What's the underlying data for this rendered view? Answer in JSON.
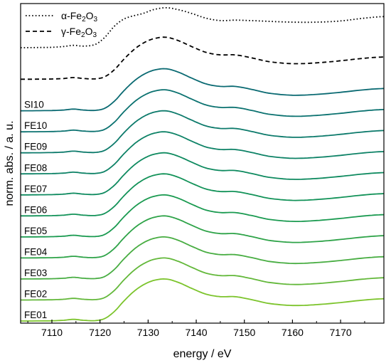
{
  "chart_data": {
    "type": "line",
    "xlabel": "energy / eV",
    "ylabel": "norm. abs. / a. u.",
    "xlim": [
      7103.5,
      7179
    ],
    "x_ticks": [
      7110,
      7120,
      7130,
      7140,
      7150,
      7160,
      7170
    ],
    "y_ticks_visible": false,
    "grid": false,
    "legend": {
      "placement": "top-left",
      "entries": [
        {
          "label_prefix": "α-Fe",
          "sub1": "2",
          "mid": "O",
          "sub2": "3",
          "style": "dotted",
          "color": "#000000"
        },
        {
          "label_prefix": "γ-Fe",
          "sub1": "2",
          "mid": "O",
          "sub2": "3",
          "style": "dashed",
          "color": "#000000"
        }
      ]
    },
    "energy_points": [
      7103.5,
      7110,
      7112.5,
      7114.5,
      7116.5,
      7119,
      7121,
      7123,
      7125,
      7127,
      7129,
      7131,
      7133.5,
      7136,
      7139,
      7142,
      7145,
      7148,
      7151,
      7155,
      7160,
      7165,
      7170,
      7175,
      7179
    ],
    "base_shape": [
      0.0,
      0.006,
      0.018,
      0.04,
      0.018,
      0.01,
      0.06,
      0.23,
      0.48,
      0.7,
      0.86,
      0.96,
      1.0,
      0.93,
      0.78,
      0.64,
      0.58,
      0.58,
      0.52,
      0.42,
      0.37,
      0.39,
      0.44,
      0.5,
      0.53
    ],
    "alpha_shape": [
      0.0,
      0.01,
      0.03,
      0.06,
      0.04,
      0.08,
      0.26,
      0.54,
      0.72,
      0.8,
      0.86,
      0.95,
      1.0,
      0.96,
      0.86,
      0.74,
      0.68,
      0.69,
      0.68,
      0.66,
      0.64,
      0.64,
      0.67,
      0.74,
      0.78
    ],
    "series": [
      {
        "name": "FE01",
        "offset": 0.0,
        "amp": 1.0,
        "color": "#7cc42c"
      },
      {
        "name": "FE02",
        "offset": 0.5,
        "amp": 1.0,
        "color": "#63b83a"
      },
      {
        "name": "FE03",
        "offset": 1.0,
        "amp": 1.0,
        "color": "#48ad42"
      },
      {
        "name": "FE04",
        "offset": 1.5,
        "amp": 1.0,
        "color": "#2ea348"
      },
      {
        "name": "FE05",
        "offset": 2.0,
        "amp": 1.0,
        "color": "#1a9a50"
      },
      {
        "name": "FE06",
        "offset": 2.5,
        "amp": 1.0,
        "color": "#129258"
      },
      {
        "name": "FE07",
        "offset": 3.0,
        "amp": 1.0,
        "color": "#0e8a5f"
      },
      {
        "name": "FE08",
        "offset": 3.5,
        "amp": 1.0,
        "color": "#0d8266"
      },
      {
        "name": "FE09",
        "offset": 4.0,
        "amp": 1.0,
        "color": "#0c7a6b"
      },
      {
        "name": "FE10",
        "offset": 4.5,
        "amp": 1.0,
        "color": "#0b7270"
      },
      {
        "name": "SI10",
        "offset": 5.0,
        "amp": 1.0,
        "color": "#0a6a72"
      },
      {
        "name": "γ-Fe2O3",
        "offset": 5.75,
        "amp": 1.0,
        "color": "#000000",
        "style": "dashed",
        "shape": "base"
      },
      {
        "name": "α-Fe2O3",
        "offset": 6.5,
        "amp": 0.95,
        "color": "#000000",
        "style": "dotted",
        "shape": "alpha"
      }
    ]
  }
}
